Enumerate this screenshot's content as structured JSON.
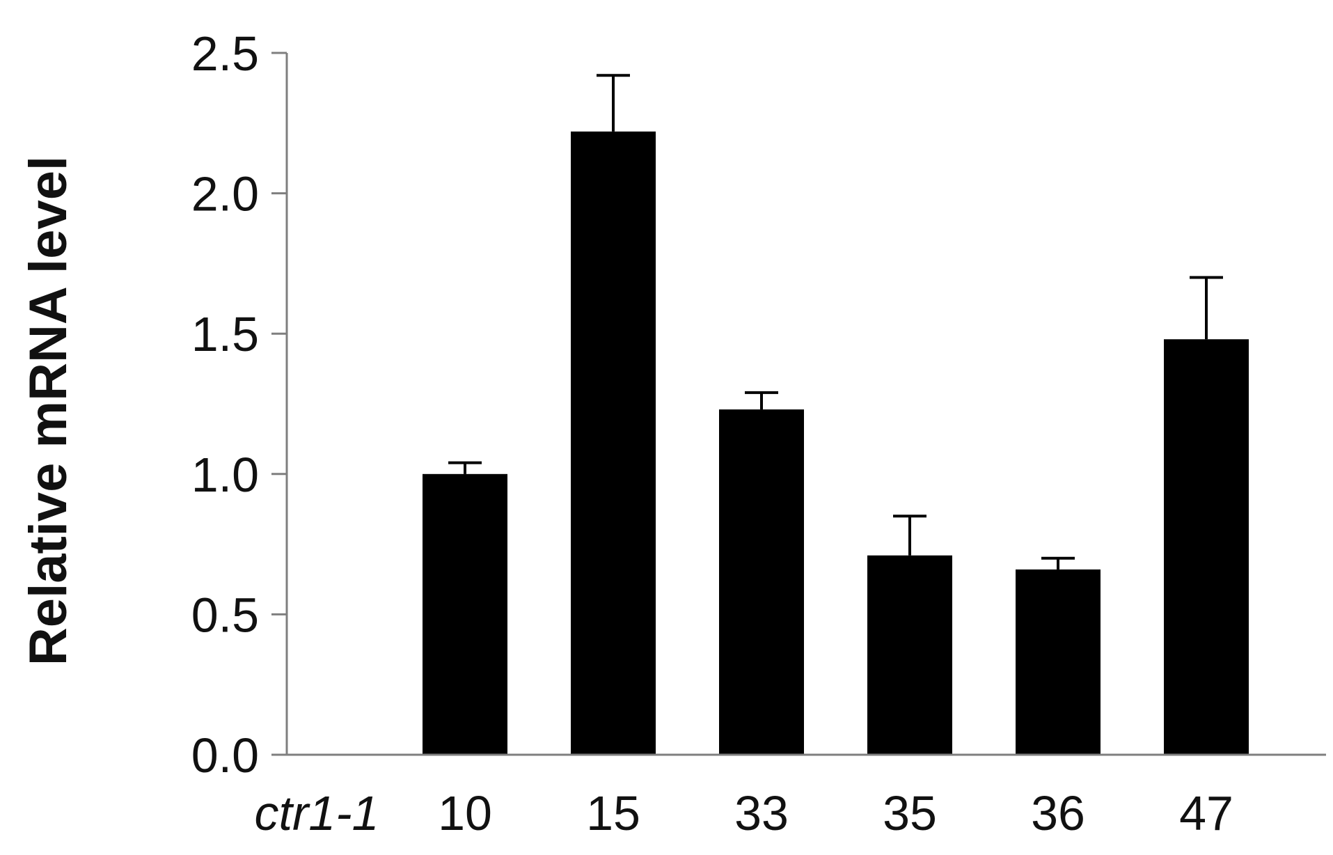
{
  "chart_data": {
    "type": "bar",
    "categories": [
      "ctr1-1",
      "10",
      "15",
      "33",
      "35",
      "36",
      "47"
    ],
    "italic_categories": [
      "ctr1-1"
    ],
    "values": [
      0.0,
      1.0,
      2.22,
      1.23,
      0.71,
      0.66,
      1.48
    ],
    "error": [
      0.0,
      0.04,
      0.2,
      0.06,
      0.14,
      0.04,
      0.22
    ],
    "title": "",
    "xlabel": "",
    "ylabel": "Relative mRNA level",
    "ylim": [
      0,
      2.5
    ],
    "yticks": [
      "0.0",
      "0.5",
      "1.0",
      "1.5",
      "2.0",
      "2.5"
    ],
    "ytick_values": [
      0,
      0.5,
      1.0,
      1.5,
      2.0,
      2.5
    ],
    "grid": false,
    "legend": "none",
    "colors": {
      "bar": "#000000",
      "axis": "#7f7f7f"
    }
  }
}
